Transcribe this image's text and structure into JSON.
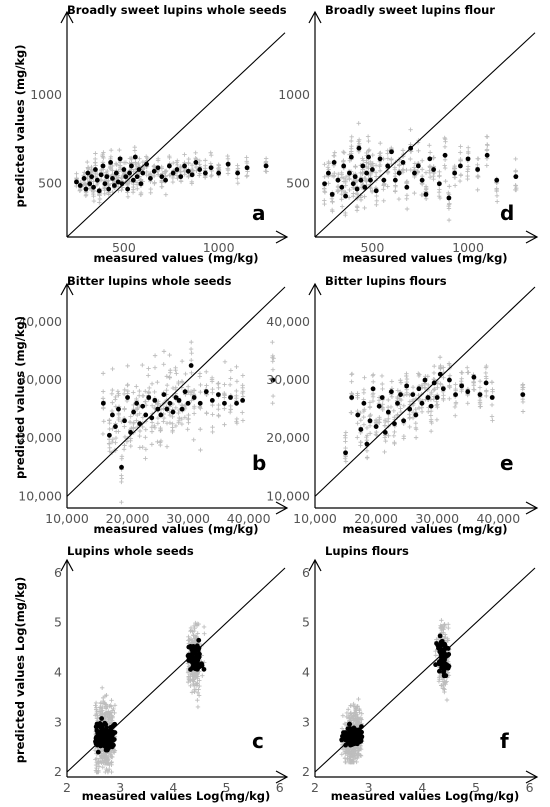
{
  "chart_data": [
    {
      "type": "scatter",
      "panel_label": "a",
      "title": "Broadly sweet lupins whole seeds",
      "xlabel": "measured values (mg/kg)",
      "ylabel": "predicted values (mg/kg)",
      "xlim": [
        200,
        1350
      ],
      "ylim": [
        200,
        1450
      ],
      "xticks": [
        500,
        1000
      ],
      "xtick_labels": [
        "500",
        "1000"
      ],
      "yticks": [
        500,
        1000
      ],
      "ytick_labels": [
        "500",
        "1000"
      ],
      "reference_line": "y = x",
      "series": [
        {
          "marker": "dot",
          "color": "#000000",
          "x": [
            250,
            270,
            290,
            300,
            310,
            320,
            330,
            340,
            350,
            360,
            370,
            380,
            390,
            400,
            410,
            420,
            430,
            440,
            450,
            460,
            470,
            480,
            490,
            500,
            510,
            520,
            530,
            540,
            550,
            560,
            570,
            580,
            590,
            600,
            620,
            640,
            660,
            680,
            700,
            720,
            740,
            760,
            780,
            800,
            820,
            840,
            860,
            880,
            900,
            930,
            960,
            1000,
            1050,
            1100,
            1150,
            1250
          ],
          "y": [
            510,
            490,
            530,
            470,
            560,
            500,
            540,
            480,
            580,
            520,
            460,
            550,
            600,
            500,
            540,
            470,
            620,
            530,
            490,
            560,
            510,
            640,
            500,
            580,
            540,
            470,
            560,
            600,
            520,
            650,
            540,
            580,
            500,
            560,
            610,
            530,
            570,
            590,
            540,
            520,
            600,
            560,
            580,
            540,
            600,
            570,
            550,
            620,
            580,
            560,
            590,
            560,
            610,
            560,
            590,
            600
          ]
        }
      ],
      "point_spread_y": [
        360,
        720
      ]
    },
    {
      "type": "scatter",
      "panel_label": "d",
      "title": "Broadly sweet lupins flour",
      "xlabel": "measured values (mg/kg)",
      "ylabel": "",
      "xlim": [
        200,
        1350
      ],
      "ylim": [
        200,
        1450
      ],
      "xticks": [
        500,
        1000
      ],
      "xtick_labels": [
        "500",
        "1000"
      ],
      "yticks": [
        500,
        1000
      ],
      "ytick_labels": [
        "500",
        "1000"
      ],
      "reference_line": "y = x",
      "series": [
        {
          "marker": "dot",
          "color": "#000000",
          "x": [
            250,
            270,
            290,
            300,
            320,
            340,
            350,
            360,
            380,
            390,
            400,
            410,
            420,
            430,
            440,
            450,
            460,
            470,
            480,
            490,
            500,
            520,
            540,
            560,
            580,
            600,
            620,
            640,
            660,
            680,
            700,
            720,
            740,
            760,
            780,
            800,
            820,
            850,
            880,
            900,
            930,
            960,
            1000,
            1050,
            1100,
            1150,
            1250
          ],
          "y": [
            500,
            560,
            440,
            620,
            520,
            480,
            600,
            430,
            560,
            650,
            500,
            540,
            470,
            700,
            520,
            600,
            480,
            560,
            650,
            520,
            580,
            460,
            640,
            520,
            600,
            680,
            520,
            560,
            620,
            480,
            700,
            560,
            600,
            520,
            440,
            640,
            580,
            500,
            660,
            420,
            560,
            600,
            640,
            580,
            660,
            520,
            540
          ]
        }
      ],
      "point_spread_y": [
        280,
        900
      ]
    },
    {
      "type": "scatter",
      "panel_label": "b",
      "title": "Bitter lupins whole seeds",
      "xlabel": "measured values (mg/kg)",
      "ylabel": "predicted values (mg/kg)",
      "xlim": [
        10000,
        46000
      ],
      "ylim": [
        8000,
        46000
      ],
      "xticks": [
        10000,
        20000,
        30000,
        40000
      ],
      "xtick_labels": [
        "10,000",
        "20,000",
        "30,000",
        "40,000"
      ],
      "yticks": [
        10000,
        20000,
        30000,
        40000
      ],
      "ytick_labels": [
        "10,000",
        "20,000",
        "30,000",
        "40,000"
      ],
      "reference_line": "y = x",
      "series": [
        {
          "marker": "dot",
          "color": "#000000",
          "x": [
            16000,
            17000,
            17500,
            18000,
            18500,
            19000,
            19500,
            20000,
            20500,
            21000,
            21500,
            22000,
            22500,
            23000,
            23500,
            24000,
            24500,
            25000,
            25500,
            26000,
            26500,
            27000,
            27500,
            28000,
            28500,
            29000,
            29500,
            30000,
            30500,
            31000,
            32000,
            33000,
            34000,
            35000,
            36000,
            37000,
            38000,
            39000,
            44000
          ],
          "y": [
            26000,
            20500,
            24000,
            22000,
            25000,
            15000,
            23000,
            27000,
            21000,
            24500,
            26000,
            22500,
            25500,
            24000,
            27000,
            23500,
            26500,
            25000,
            24000,
            27500,
            25000,
            26000,
            24500,
            27000,
            26500,
            25000,
            28000,
            26000,
            32500,
            27000,
            26000,
            28000,
            26500,
            27500,
            26000,
            27000,
            26000,
            26500,
            30000
          ]
        }
      ],
      "point_spread_y": [
        9000,
        44000
      ]
    },
    {
      "type": "scatter",
      "panel_label": "e",
      "title": "Bitter lupins flours",
      "xlabel": "measured values (mg/kg)",
      "ylabel": "",
      "xlim": [
        10000,
        46000
      ],
      "ylim": [
        8000,
        46000
      ],
      "xticks": [
        10000,
        20000,
        30000,
        40000
      ],
      "xtick_labels": [
        "10,000",
        "20,000",
        "30,000",
        "40,000"
      ],
      "yticks": [
        10000,
        20000,
        30000,
        40000
      ],
      "ytick_labels": [
        "10,000",
        "20,000",
        "30,000",
        "40,000"
      ],
      "reference_line": "y = x",
      "series": [
        {
          "marker": "dot",
          "color": "#000000",
          "x": [
            15000,
            16000,
            17000,
            17500,
            18000,
            18500,
            19000,
            19500,
            20000,
            20500,
            21000,
            21500,
            22000,
            22500,
            23000,
            23500,
            24000,
            24500,
            25000,
            25500,
            26000,
            26500,
            27000,
            27500,
            28000,
            28500,
            29000,
            29500,
            30000,
            30500,
            31000,
            32000,
            33000,
            34000,
            35000,
            36000,
            37000,
            38000,
            39000,
            44000
          ],
          "y": [
            17500,
            27000,
            24000,
            21500,
            26000,
            19000,
            23000,
            28500,
            22000,
            25500,
            27000,
            21000,
            24500,
            28000,
            22500,
            26000,
            27500,
            23000,
            29000,
            25000,
            27500,
            24000,
            28500,
            26000,
            30000,
            27000,
            25500,
            29500,
            27000,
            31000,
            28500,
            30000,
            27500,
            29000,
            28000,
            30500,
            27500,
            29500,
            27000,
            27500
          ]
        }
      ],
      "point_spread_y": [
        16000,
        35000
      ]
    },
    {
      "type": "scatter",
      "panel_label": "c",
      "title": "Lupins whole seeds",
      "xlabel": "measured values Log(mg/kg)",
      "ylabel": "predicted values Log(mg/kg)",
      "xlim": [
        2,
        6.1
      ],
      "ylim": [
        1.9,
        6.2
      ],
      "xticks": [
        2,
        3,
        4,
        5,
        6
      ],
      "xtick_labels": [
        "2",
        "3",
        "4",
        "5",
        "6"
      ],
      "yticks": [
        2,
        3,
        4,
        5,
        6
      ],
      "ytick_labels": [
        "2",
        "3",
        "4",
        "5",
        "6"
      ],
      "reference_line": "y = x",
      "clusters": [
        {
          "x_center": 2.72,
          "x_spread": 0.28,
          "y_center": 2.72,
          "y_spread": 0.42,
          "count": 140
        },
        {
          "x_center": 4.4,
          "x_spread": 0.2,
          "y_center": 4.3,
          "y_spread": 0.4,
          "count": 70
        }
      ],
      "point_spread_y": [
        2.0,
        5.5
      ]
    },
    {
      "type": "scatter",
      "panel_label": "f",
      "title": "Lupins flours",
      "xlabel": "measured values Log(mg/kg)",
      "ylabel": "",
      "xlim": [
        2,
        6.1
      ],
      "ylim": [
        1.9,
        6.2
      ],
      "xticks": [
        2,
        3,
        4,
        5,
        6
      ],
      "xtick_labels": [
        "2",
        "3",
        "4",
        "5",
        "6"
      ],
      "yticks": [
        2,
        3,
        4,
        5,
        6
      ],
      "ytick_labels": [
        "2",
        "3",
        "4",
        "5",
        "6"
      ],
      "reference_line": "y = x",
      "clusters": [
        {
          "x_center": 2.72,
          "x_spread": 0.26,
          "y_center": 2.72,
          "y_spread": 0.25,
          "count": 140
        },
        {
          "x_center": 4.4,
          "x_spread": 0.18,
          "y_center": 4.3,
          "y_spread": 0.55,
          "count": 70
        }
      ],
      "point_spread_y": [
        2.2,
        5.1
      ]
    }
  ],
  "colors": {
    "points": "#000000",
    "prediction_crosses": "#bdbdbd",
    "axes": "#000000"
  }
}
